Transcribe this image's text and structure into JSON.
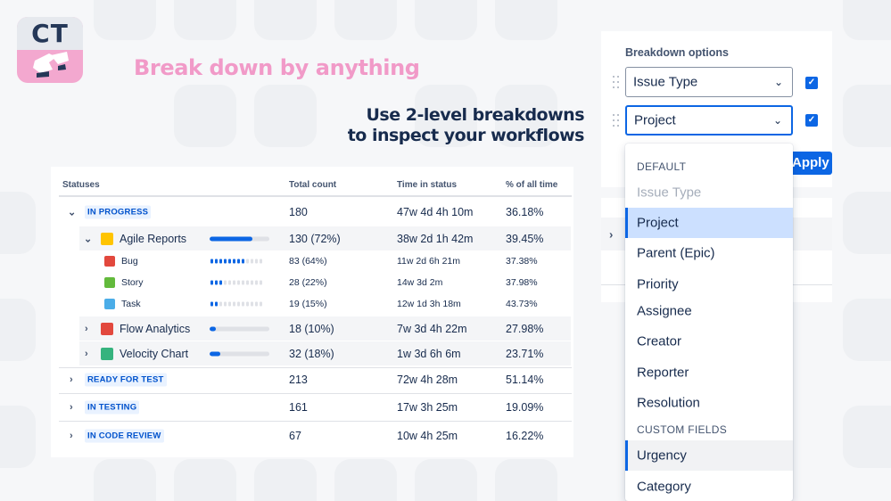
{
  "logo": {
    "text": "CT"
  },
  "headline": "Break down by anything",
  "subheadline": {
    "line1": "Use 2-level breakdowns",
    "line2": "to inspect your workflows"
  },
  "table": {
    "headers": {
      "statuses": "Statuses",
      "total": "Total count",
      "time": "Time in status",
      "pct": "% of all time"
    },
    "in_progress": {
      "status": "IN PROGRESS",
      "total": "180",
      "time": "47w 4d 4h 10m",
      "pct": "36.18%"
    },
    "agile": {
      "name": "Agile Reports",
      "total": "130 (72%)",
      "time": "38w 2d 1h 42m",
      "pct": "39.45%",
      "bar": 0.72
    },
    "bug": {
      "name": "Bug",
      "total": "83 (64%)",
      "time": "11w 2d 6h 21m",
      "pct": "37.38%",
      "fill": 0.64
    },
    "story": {
      "name": "Story",
      "total": "28 (22%)",
      "time": "14w 3d 2m",
      "pct": "37.98%",
      "fill": 0.22
    },
    "task": {
      "name": "Task",
      "total": "19 (15%)",
      "time": "12w 1d 3h 18m",
      "pct": "43.73%",
      "fill": 0.15
    },
    "flow": {
      "name": "Flow Analytics",
      "total": "18 (10%)",
      "time": "7w 3d 4h 22m",
      "pct": "27.98%",
      "bar": 0.1
    },
    "velocity": {
      "name": "Velocity Chart",
      "total": "32 (18%)",
      "time": "1w 3d 6h 6m",
      "pct": "23.71%",
      "bar": 0.18
    },
    "ready": {
      "status": "READY FOR TEST",
      "total": "213",
      "time": "72w 4h 28m",
      "pct": "51.14%"
    },
    "testing": {
      "status": "IN TESTING",
      "total": "161",
      "time": "17w 3h 25m",
      "pct": "19.09%"
    },
    "review": {
      "status": "IN CODE REVIEW",
      "total": "67",
      "time": "10w 4h 25m",
      "pct": "16.22%"
    }
  },
  "breakdown": {
    "title": "Breakdown options",
    "level1": "Issue Type",
    "level2": "Project",
    "apply_label": "Apply",
    "dropdown": {
      "group_default": "DEFAULT",
      "items_default": [
        "Issue Type",
        "Project",
        "Parent (Epic)",
        "Priority",
        "Assignee",
        "Creator",
        "Reporter",
        "Resolution"
      ],
      "group_custom": "CUSTOM FIELDS",
      "items_custom": [
        "Urgency",
        "Category"
      ]
    }
  },
  "colors": {
    "accent": "#0c66e4",
    "headline_pink": "#f19ac8",
    "lozenge_bg": "#e9f2ff"
  }
}
